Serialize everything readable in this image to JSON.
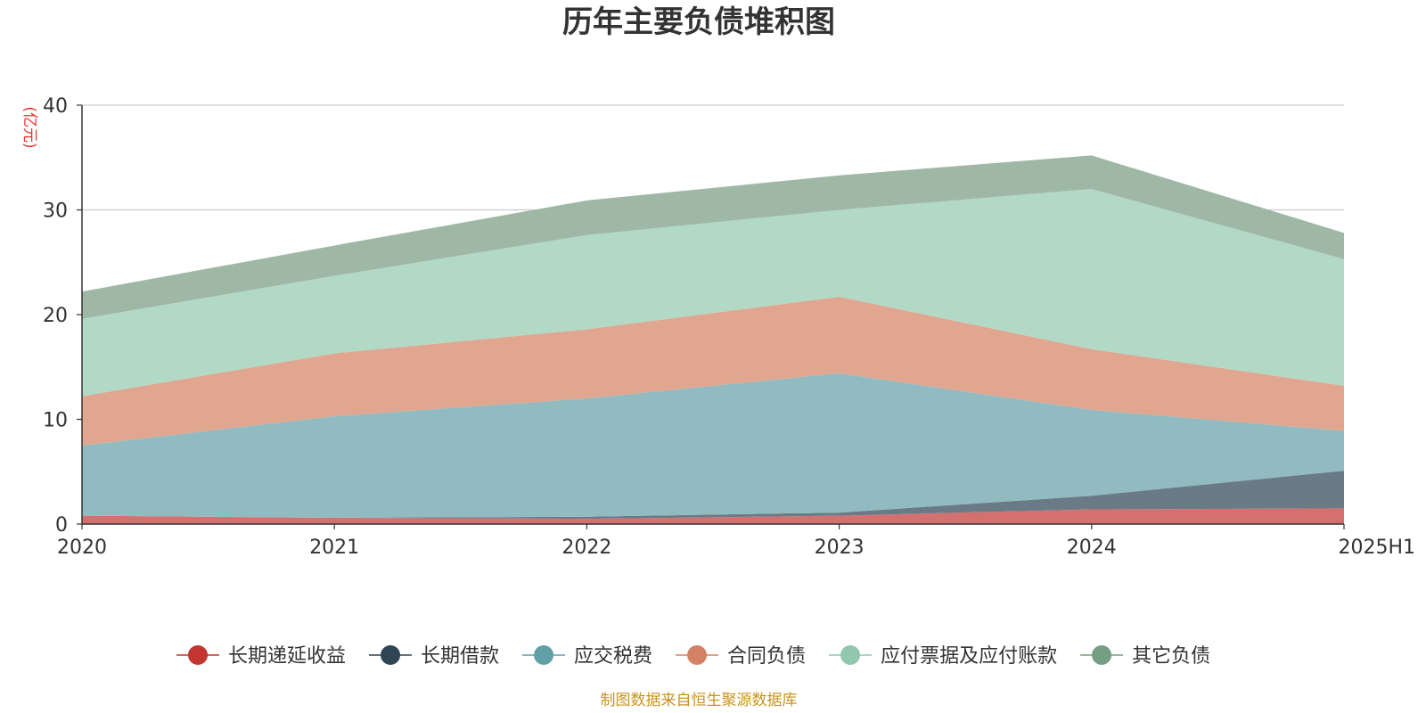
{
  "chart_data": {
    "type": "area",
    "title": "历年主要负债堆积图",
    "unit_label": "(亿元)",
    "x": [
      "2020",
      "2021",
      "2022",
      "2023",
      "2024",
      "2025H1"
    ],
    "ylim": [
      0,
      40
    ],
    "yticks": [
      "0",
      "10",
      "20",
      "30",
      "40"
    ],
    "stacked": true,
    "grid": true,
    "legend_position": "bottom",
    "series": [
      {
        "name": "长期递延收益",
        "color": "#c23531",
        "fill": "#d4706f",
        "values": [
          0.8,
          0.6,
          0.5,
          0.8,
          1.4,
          1.5
        ]
      },
      {
        "name": "长期借款",
        "color": "#2f4554",
        "fill": "#6b7b86",
        "values": [
          0.0,
          0.0,
          0.2,
          0.3,
          1.3,
          3.6
        ]
      },
      {
        "name": "应交税费",
        "color": "#61a0a8",
        "fill": "#91bbc1",
        "values": [
          6.7,
          9.7,
          11.3,
          13.3,
          8.2,
          3.8
        ]
      },
      {
        "name": "合同负债",
        "color": "#d48265",
        "fill": "#e0a690",
        "values": [
          4.7,
          6.0,
          6.6,
          7.3,
          5.8,
          4.3
        ]
      },
      {
        "name": "应付票据及应付账款",
        "color": "#91c7ae",
        "fill": "#b2d8c6",
        "values": [
          7.4,
          7.4,
          9.0,
          8.3,
          15.3,
          12.1
        ]
      },
      {
        "name": "其它负债",
        "color": "#749f83",
        "fill": "#9eb8a5",
        "values": [
          2.6,
          2.9,
          3.3,
          3.3,
          3.2,
          2.5
        ]
      }
    ]
  },
  "footer": {
    "source": "制图数据来自恒生聚源数据库"
  }
}
